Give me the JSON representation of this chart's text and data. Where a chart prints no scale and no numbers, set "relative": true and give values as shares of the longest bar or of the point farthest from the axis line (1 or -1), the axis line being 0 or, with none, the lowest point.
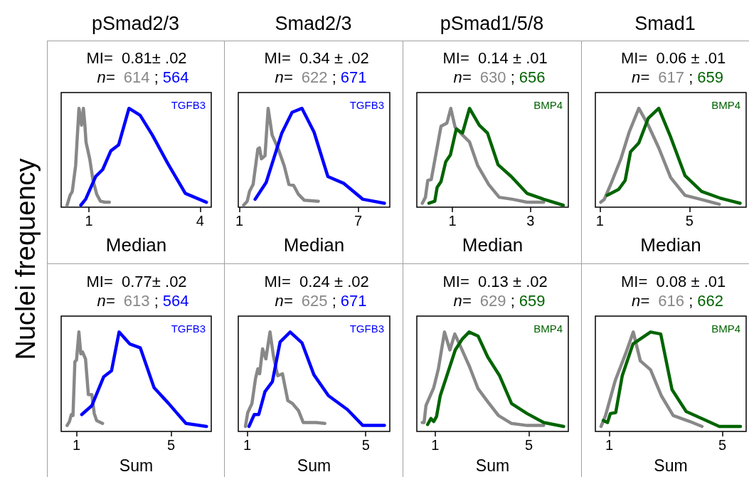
{
  "chart_data": [
    {
      "type": "line",
      "title": "pSmad2/3",
      "ylabel": "Nuclei frequency",
      "xlabel": "Median",
      "xlim": [
        0.25,
        4.3
      ],
      "xticks": [
        1,
        4
      ],
      "relative": true,
      "tick_labels": "x",
      "grid": false,
      "legend": false,
      "marker": "none",
      "line_style": "solid",
      "annotations": [
        "MI=  0.81± .02",
        "n=  614 ; 564"
      ],
      "series": [
        {
          "color": "#888888",
          "x": [
            0.41,
            0.49,
            0.55,
            0.64,
            0.73,
            0.8,
            0.85,
            0.89,
            0.92,
            1.02,
            1.11,
            1.21,
            1.31,
            1.43,
            1.55
          ],
          "values": [
            0.02,
            0.12,
            0.16,
            0.42,
            1,
            0.83,
            1,
            0.83,
            0.66,
            0.49,
            0.27,
            0.13,
            0.06,
            0.05,
            0.05
          ]
        },
        {
          "name": "TGFB3",
          "color": "#0000ff",
          "x": [
            0.78,
            0.91,
            1.18,
            1.37,
            1.59,
            1.8,
            2.08,
            2.38,
            2.71,
            3.13,
            3.6,
            4.17
          ],
          "values": [
            0.02,
            0.08,
            0.31,
            0.38,
            0.57,
            0.63,
            1,
            0.93,
            0.73,
            0.44,
            0.14,
            0.05
          ]
        }
      ]
    },
    {
      "type": "line",
      "title": "Smad2/3",
      "xlabel": "Median",
      "xlim": [
        0.94,
        8.6
      ],
      "xticks": [
        1,
        7
      ],
      "relative": true,
      "tick_labels": "x",
      "grid": false,
      "legend": false,
      "marker": "none",
      "line_style": "solid",
      "annotations": [
        "MI=  0.34 ± .02",
        "n=  622 ; 671"
      ],
      "series": [
        {
          "color": "#888888",
          "x": [
            1.21,
            1.39,
            1.51,
            1.69,
            1.93,
            2.01,
            2.11,
            2.29,
            2.45,
            2.65,
            2.96,
            3.26,
            3.5,
            3.74,
            3.98,
            4.28,
            4.99
          ],
          "values": [
            0.02,
            0.06,
            0.16,
            0.23,
            0.59,
            0.6,
            0.49,
            0.52,
            1,
            0.73,
            0.59,
            0.42,
            0.23,
            0.22,
            0.13,
            0.07,
            0.06
          ]
        },
        {
          "name": "TGFB3",
          "color": "#0000ff",
          "x": [
            1.79,
            2.35,
            3.14,
            3.66,
            4.16,
            4.77,
            5.47,
            6.28,
            7.24,
            8.33
          ],
          "values": [
            0.08,
            0.25,
            0.75,
            0.96,
            1,
            0.76,
            0.31,
            0.24,
            0.08,
            0.04
          ]
        }
      ]
    },
    {
      "type": "line",
      "title": "pSmad1/5/8",
      "xlabel": "Median",
      "xlim": [
        0.09,
        3.97
      ],
      "xticks": [
        1,
        3
      ],
      "relative": true,
      "tick_labels": "x",
      "grid": false,
      "legend": false,
      "marker": "none",
      "line_style": "solid",
      "annotations": [
        "MI=  0.14 ± .01",
        "n=  630 ; 656"
      ],
      "series": [
        {
          "color": "#888888",
          "x": [
            0.23,
            0.31,
            0.37,
            0.46,
            0.58,
            0.71,
            0.86,
            0.96,
            1.07,
            1.26,
            1.44,
            1.65,
            1.93,
            2.2,
            2.54,
            2.91,
            3.34
          ],
          "values": [
            0.04,
            0.1,
            0.27,
            0.28,
            0.54,
            0.82,
            0.85,
            1,
            0.81,
            0.73,
            0.66,
            0.42,
            0.23,
            0.1,
            0.08,
            0.05,
            0.05
          ]
        },
        {
          "name": "BMP4",
          "color": "#006400",
          "x": [
            0.4,
            0.55,
            0.61,
            0.71,
            0.83,
            0.95,
            1.1,
            1.26,
            1.44,
            1.69,
            1.9,
            2.17,
            2.51,
            2.91,
            3.34,
            3.84
          ],
          "values": [
            0.04,
            0.06,
            0.2,
            0.26,
            0.46,
            0.53,
            0.79,
            0.75,
            1,
            0.83,
            0.75,
            0.43,
            0.31,
            0.14,
            0.08,
            0.02
          ]
        }
      ]
    },
    {
      "type": "line",
      "title": "Smad1",
      "xlabel": "Median",
      "xlim": [
        0.8,
        7.53
      ],
      "xticks": [
        1,
        5
      ],
      "relative": true,
      "tick_labels": "x",
      "grid": false,
      "legend": false,
      "marker": "none",
      "line_style": "solid",
      "annotations": [
        "MI=  0.06 ± .01",
        "n=  617 ; 659"
      ],
      "series": [
        {
          "color": "#888888",
          "x": [
            1.04,
            1.2,
            1.52,
            1.94,
            2.31,
            2.74,
            3.16,
            3.63,
            4.16,
            4.8,
            5.49,
            6.33
          ],
          "values": [
            0.05,
            0.08,
            0.25,
            0.49,
            0.76,
            1,
            0.83,
            0.6,
            0.3,
            0.12,
            0.08,
            0.03
          ]
        },
        {
          "name": "BMP4",
          "color": "#006400",
          "x": [
            1.33,
            1.84,
            2.13,
            2.37,
            2.74,
            3.16,
            3.63,
            4.16,
            4.8,
            5.54,
            6.39,
            7.26
          ],
          "values": [
            0.12,
            0.18,
            0.27,
            0.56,
            0.65,
            0.9,
            1,
            0.71,
            0.32,
            0.16,
            0.09,
            0.04
          ]
        }
      ]
    },
    {
      "type": "line",
      "xlabel": "Sum",
      "xlim": [
        0.35,
        6.7
      ],
      "xticks": [
        1,
        5
      ],
      "relative": true,
      "tick_labels": "x",
      "grid": false,
      "legend": false,
      "marker": "none",
      "line_style": "solid",
      "annotations": [
        "MI=  0.77± .02",
        "n=  613 ; 564"
      ],
      "series": [
        {
          "color": "#888888",
          "x": [
            0.6,
            0.7,
            0.78,
            0.85,
            0.93,
            1.0,
            1.1,
            1.18,
            1.25,
            1.38,
            1.5,
            1.65,
            1.75,
            1.85,
            2.1
          ],
          "values": [
            0.06,
            0.1,
            0.17,
            0.16,
            0.7,
            0.72,
            1,
            0.78,
            0.8,
            0.73,
            0.37,
            0.37,
            0.18,
            0.11,
            0.08
          ]
        },
        {
          "name": "TGFB3",
          "color": "#0000ff",
          "x": [
            1.22,
            1.65,
            2.15,
            2.48,
            2.8,
            3.25,
            3.7,
            4.28,
            4.9,
            5.63,
            6.5
          ],
          "values": [
            0.17,
            0.26,
            0.55,
            0.61,
            1,
            0.88,
            0.84,
            0.44,
            0.28,
            0.08,
            0.05
          ]
        }
      ]
    },
    {
      "type": "line",
      "xlabel": "Sum",
      "xlim": [
        0.7,
        5.81
      ],
      "xticks": [
        1,
        5
      ],
      "relative": true,
      "tick_labels": "x",
      "grid": false,
      "legend": false,
      "marker": "none",
      "line_style": "solid",
      "annotations": [
        "MI=  0.24 ± .02",
        "n=  625 ; 671"
      ],
      "series": [
        {
          "color": "#888888",
          "x": [
            0.94,
            1.02,
            1.16,
            1.28,
            1.36,
            1.42,
            1.52,
            1.63,
            1.77,
            1.89,
            2.03,
            2.19,
            2.37,
            2.53,
            2.73,
            2.89,
            3.33,
            3.62
          ],
          "values": [
            0.05,
            0.19,
            0.28,
            0.53,
            0.63,
            0.58,
            0.83,
            0.73,
            1,
            0.75,
            0.56,
            0.58,
            0.31,
            0.28,
            0.21,
            0.09,
            0.09,
            0.08
          ]
        },
        {
          "name": "TGFB3",
          "color": "#0000ff",
          "x": [
            1.06,
            1.24,
            1.39,
            1.6,
            1.85,
            2.11,
            2.45,
            2.85,
            3.25,
            3.74,
            4.38,
            4.9,
            5.63
          ],
          "values": [
            0.05,
            0.17,
            0.17,
            0.4,
            0.5,
            0.9,
            1,
            0.89,
            0.57,
            0.36,
            0.22,
            0.06,
            0.06
          ]
        }
      ]
    },
    {
      "type": "line",
      "xlabel": "Sum",
      "xlim": [
        0.22,
        6.68
      ],
      "xticks": [
        1,
        5
      ],
      "relative": true,
      "tick_labels": "x",
      "grid": false,
      "legend": false,
      "marker": "none",
      "line_style": "solid",
      "annotations": [
        "MI=  0.13 ± .02",
        "n=  629 ; 659"
      ],
      "series": [
        {
          "color": "#888888",
          "x": [
            0.45,
            0.53,
            0.61,
            0.94,
            1.14,
            1.4,
            1.63,
            1.84,
            2.11,
            2.47,
            2.83,
            3.24,
            3.7,
            4.26,
            4.92,
            5.63
          ],
          "values": [
            0.09,
            0.09,
            0.26,
            0.44,
            0.63,
            1,
            0.82,
            0.98,
            0.84,
            0.65,
            0.43,
            0.3,
            0.16,
            0.08,
            0.06,
            0.06
          ]
        },
        {
          "name": "BMP4",
          "color": "#006400",
          "x": [
            0.68,
            0.82,
            0.94,
            1.06,
            1.22,
            1.5,
            1.86,
            2.16,
            2.45,
            2.83,
            3.24,
            3.75,
            4.26,
            4.92,
            5.63,
            6.48
          ],
          "values": [
            0.07,
            0.13,
            0.1,
            0.15,
            0.36,
            0.56,
            0.82,
            0.93,
            1,
            0.96,
            0.75,
            0.56,
            0.28,
            0.18,
            0.09,
            0.05
          ]
        }
      ]
    },
    {
      "type": "line",
      "xlabel": "Sum",
      "xlim": [
        0.51,
        5.84
      ],
      "xticks": [
        1,
        5
      ],
      "relative": true,
      "tick_labels": "x",
      "grid": false,
      "legend": false,
      "marker": "none",
      "line_style": "solid",
      "annotations": [
        "MI=  0.08 ± .01",
        "n=  616 ; 662"
      ],
      "series": [
        {
          "color": "#888888",
          "x": [
            0.71,
            0.87,
            1.21,
            1.59,
            1.85,
            2.1,
            2.46,
            2.84,
            3.26,
            3.85,
            4.28
          ],
          "values": [
            0.05,
            0.16,
            0.51,
            0.79,
            1,
            0.71,
            0.62,
            0.36,
            0.16,
            0.1,
            0.05
          ]
        },
        {
          "name": "BMP4",
          "color": "#006400",
          "x": [
            0.79,
            0.94,
            1.04,
            1.23,
            1.46,
            1.84,
            2.46,
            2.82,
            3.22,
            3.72,
            4.35,
            4.89,
            5.64
          ],
          "values": [
            0.11,
            0.09,
            0.18,
            0.19,
            0.56,
            0.88,
            1,
            0.98,
            0.42,
            0.2,
            0.12,
            0.05,
            0.05
          ]
        }
      ]
    }
  ]
}
